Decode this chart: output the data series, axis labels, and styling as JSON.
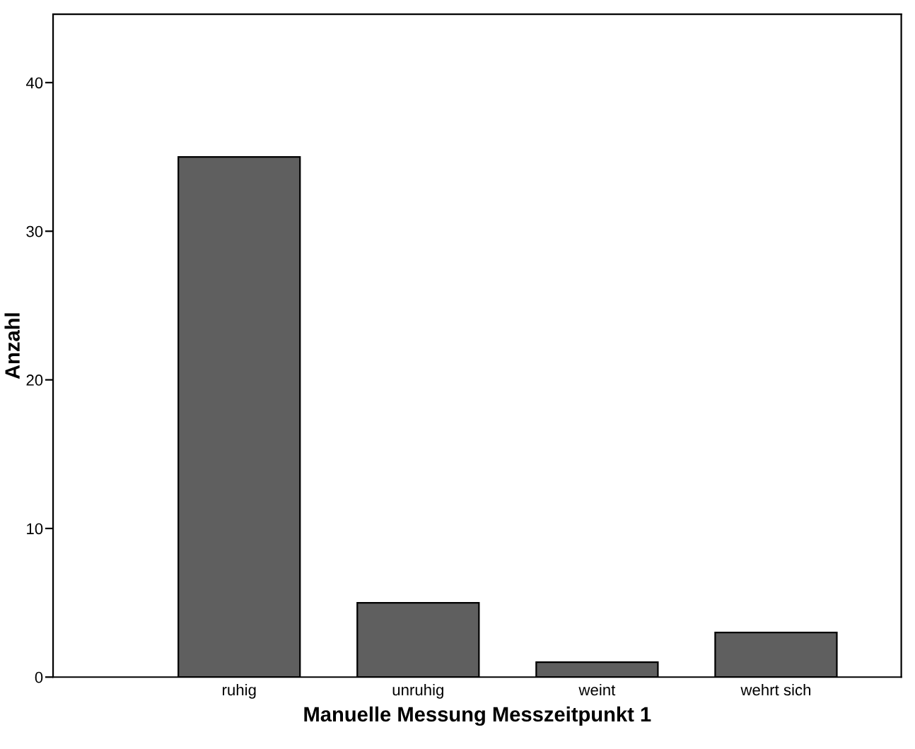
{
  "chart_data": {
    "type": "bar",
    "xlabel": "Manuelle Messung Messzeitpunkt 1",
    "ylabel": "Anzahl",
    "categories": [
      "ruhig",
      "unruhig",
      "weint",
      "wehrt sich"
    ],
    "values": [
      35,
      5,
      1,
      3
    ],
    "color": "#5f5f5f",
    "ylim": [
      0,
      44.6
    ],
    "yticks": [
      0,
      10,
      20,
      30,
      40
    ],
    "grid": false
  }
}
